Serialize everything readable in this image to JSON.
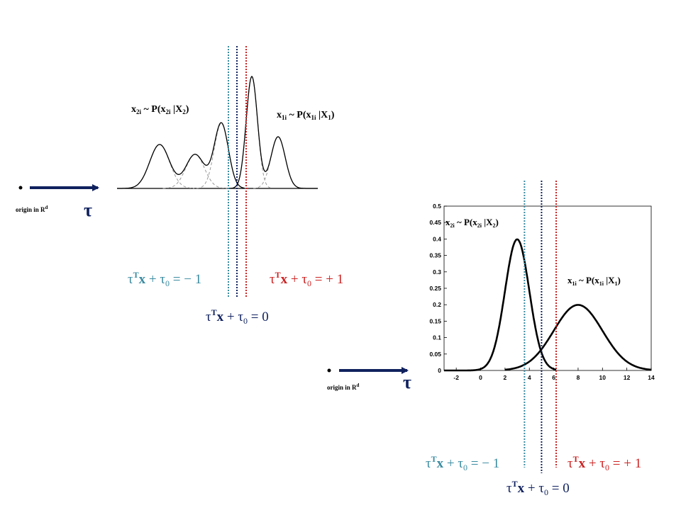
{
  "colors": {
    "navy": "#10215e",
    "teal": "#3a8ba0",
    "red": "#cc2222",
    "curve": "#000000",
    "component": "#9a9a9a"
  },
  "top_diagram": {
    "origin_label": "origin in R",
    "origin_sup": "d",
    "tau": "τ",
    "label_x2": {
      "base": "x",
      "sub1": "2i",
      "mid": " ~ P(x",
      "sub2": "2i",
      "mid2": " |X",
      "sub3": "2",
      "end": ")"
    },
    "label_x1": {
      "base": "x",
      "sub1": "1i",
      "mid": " ~ P(x",
      "sub2": "1i",
      "mid2": " |X",
      "sub3": "1",
      "end": ")"
    },
    "eq_minus": {
      "tau": "τ",
      "T": "T",
      "x": "x",
      "rest": " + τ",
      "zero": "0",
      "val": " = − 1"
    },
    "eq_plus": {
      "tau": "τ",
      "T": "T",
      "x": "x",
      "rest": " + τ",
      "zero": "0",
      "val": " = + 1"
    },
    "eq_zero": {
      "tau": "τ",
      "T": "T",
      "x": "x",
      "rest": " + τ",
      "zero": "0",
      "val": " = 0"
    }
  },
  "bottom_diagram": {
    "origin_label": "origin in R",
    "origin_sup": "d",
    "tau": "τ",
    "label_x2": {
      "base": "x",
      "sub1": "2i",
      "mid": " ~ P(x",
      "sub2": "2i",
      "mid2": " |X",
      "sub3": "2",
      "end": ")"
    },
    "label_x1": {
      "base": "x",
      "sub1": "1i",
      "mid": " ~ P(x",
      "sub2": "1i",
      "mid2": " |X",
      "sub3": "1",
      "end": ")"
    },
    "eq_minus": {
      "tau": "τ",
      "T": "T",
      "x": "x",
      "rest": " + τ",
      "zero": "0",
      "val": " = − 1"
    },
    "eq_plus": {
      "tau": "τ",
      "T": "T",
      "x": "x",
      "rest": " + τ",
      "zero": "0",
      "val": " = + 1"
    },
    "eq_zero": {
      "tau": "τ",
      "T": "T",
      "x": "x",
      "rest": " + τ",
      "zero": "0",
      "val": " = 0"
    }
  },
  "chart_data": {
    "type": "line",
    "x_ticks": [
      "-2",
      "0",
      "2",
      "4",
      "6",
      "8",
      "10",
      "12",
      "14"
    ],
    "y_ticks": [
      "0",
      "0.05",
      "0.1",
      "0.15",
      "0.2",
      "0.25",
      "0.3",
      "0.35",
      "0.4",
      "0.45",
      "0.5"
    ],
    "xlim": [
      -3,
      14
    ],
    "ylim": [
      0,
      0.5
    ],
    "series": [
      {
        "mean": 3,
        "sd": 1,
        "x_range": [
          -3,
          6.2
        ]
      },
      {
        "mean": 8,
        "sd": 2,
        "x_range": [
          2,
          14
        ]
      }
    ],
    "boundaries": {
      "minus_one": 3.6,
      "zero": 5.0,
      "plus_one": 6.2
    },
    "grid": false
  }
}
